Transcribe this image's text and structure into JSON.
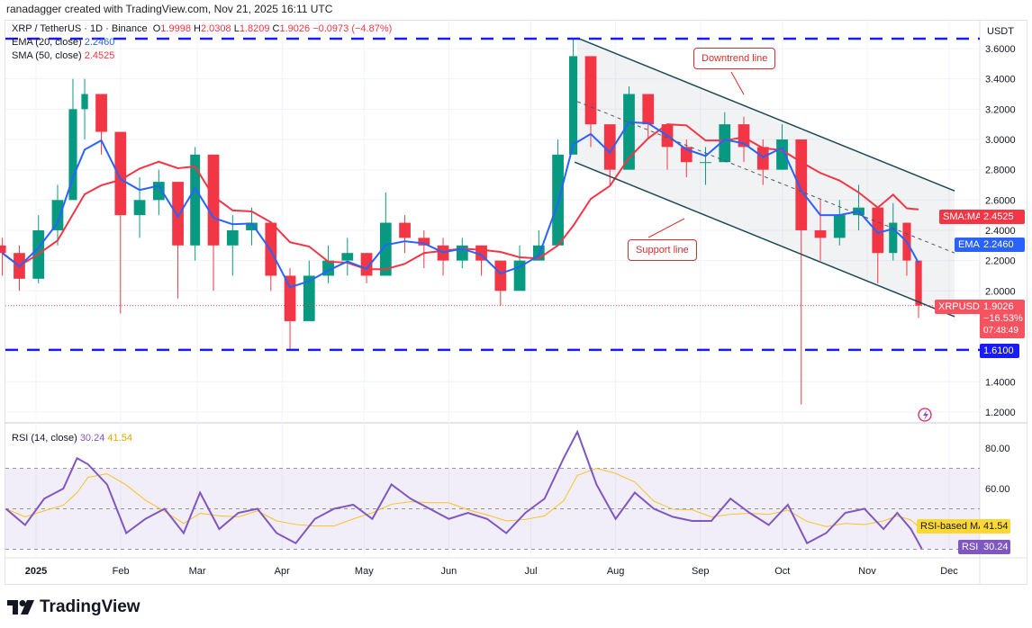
{
  "credit": "ranadagger created with TradingView.com, Nov 21, 2025 16:11 UTC",
  "legend": {
    "symbol": "XRP / TetherUS · 1D · Binance",
    "o_label": "O",
    "o": "1.9998",
    "h_label": "H",
    "h": "2.0308",
    "l_label": "L",
    "l": "1.8209",
    "c_label": "C",
    "c": "1.9026",
    "change": "−0.0973 (−4.87%)",
    "ema_label": "EMA (20, close)",
    "ema_value": "2.2460",
    "sma_label": "SMA (50, close)",
    "sma_value": "2.4525",
    "rsi_label": "RSI (14, close)",
    "rsi_value": "30.24",
    "rsi_ma_value": "41.54"
  },
  "currency": "USDT",
  "brand": "TradingView",
  "tags": {
    "sma": {
      "label": "SMA:MA",
      "value": "2.4525"
    },
    "ema": {
      "label": "EMA",
      "value": "2.2460"
    },
    "price": {
      "label": "XRPUSDT",
      "value": "1.9026",
      "change": "−16.53%",
      "countdown": "07:48:49"
    },
    "level": {
      "value": "1.6100"
    },
    "rsi_ma": {
      "label": "RSI-based MA",
      "value": "41.54"
    },
    "rsi": {
      "label": "RSI",
      "value": "30.24"
    }
  },
  "annotations": {
    "downtrend": "Downtrend line",
    "support": "Support line"
  },
  "colors": {
    "up": "#089981",
    "down": "#f23645",
    "ema": "#2962ff",
    "sma": "#f23645",
    "rsi": "#7e57c2",
    "rsi_ma": "#f7c325",
    "level": "#1a1aff",
    "channel": "#1e4a54"
  },
  "chart_data": {
    "type": "candlestick",
    "price_ticks": [
      "3.6000",
      "3.4000",
      "3.2000",
      "3.0000",
      "2.8000",
      "2.6000",
      "2.4000",
      "2.2000",
      "2.0000",
      "1.4000",
      "1.2000"
    ],
    "ylim": [
      1.13,
      3.78
    ],
    "time_ticks": [
      [
        "2025-01-01",
        "2025"
      ],
      [
        "2025-02-01",
        "Feb"
      ],
      [
        "2025-03-01",
        "Mar"
      ],
      [
        "2025-04-01",
        "Apr"
      ],
      [
        "2025-05-01",
        "May"
      ],
      [
        "2025-06-01",
        "Jun"
      ],
      [
        "2025-07-01",
        "Jul"
      ],
      [
        "2025-08-01",
        "Aug"
      ],
      [
        "2025-09-01",
        "Sep"
      ],
      [
        "2025-10-01",
        "Oct"
      ],
      [
        "2025-11-01",
        "Nov"
      ],
      [
        "2025-12-01",
        "Dec"
      ]
    ],
    "candles_date_close_high_low": [
      [
        "2024-12-21",
        2.25,
        2.35,
        2.1
      ],
      [
        "2024-12-28",
        2.08,
        2.3,
        2.0
      ],
      [
        "2025-01-04",
        2.4,
        2.5,
        2.05
      ],
      [
        "2025-01-11",
        2.6,
        2.7,
        2.3
      ],
      [
        "2025-01-16",
        3.2,
        3.4,
        2.6
      ],
      [
        "2025-01-20",
        3.3,
        3.4,
        3.0
      ],
      [
        "2025-01-27",
        3.05,
        3.3,
        2.9
      ],
      [
        "2025-02-03",
        2.5,
        3.0,
        1.85
      ],
      [
        "2025-02-10",
        2.6,
        2.75,
        2.35
      ],
      [
        "2025-02-17",
        2.72,
        2.8,
        2.5
      ],
      [
        "2025-02-24",
        2.3,
        2.7,
        1.95
      ],
      [
        "2025-03-02",
        2.9,
        2.95,
        2.2
      ],
      [
        "2025-03-09",
        2.3,
        2.8,
        2.0
      ],
      [
        "2025-03-16",
        2.4,
        2.5,
        2.1
      ],
      [
        "2025-03-23",
        2.45,
        2.55,
        2.3
      ],
      [
        "2025-03-30",
        2.1,
        2.45,
        2.0
      ],
      [
        "2025-04-06",
        1.8,
        2.15,
        1.61
      ],
      [
        "2025-04-13",
        2.1,
        2.2,
        1.9
      ],
      [
        "2025-04-20",
        2.2,
        2.3,
        2.05
      ],
      [
        "2025-04-27",
        2.25,
        2.35,
        2.1
      ],
      [
        "2025-05-04",
        2.1,
        2.25,
        2.05
      ],
      [
        "2025-05-11",
        2.45,
        2.65,
        2.2
      ],
      [
        "2025-05-18",
        2.35,
        2.5,
        2.25
      ],
      [
        "2025-05-25",
        2.3,
        2.4,
        2.15
      ],
      [
        "2025-06-01",
        2.2,
        2.35,
        2.1
      ],
      [
        "2025-06-08",
        2.3,
        2.35,
        2.15
      ],
      [
        "2025-06-15",
        2.2,
        2.3,
        2.1
      ],
      [
        "2025-06-22",
        2.0,
        2.2,
        1.9
      ],
      [
        "2025-06-29",
        2.2,
        2.3,
        2.05
      ],
      [
        "2025-07-06",
        2.3,
        2.4,
        2.2
      ],
      [
        "2025-07-13",
        2.9,
        3.0,
        2.3
      ],
      [
        "2025-07-18",
        3.55,
        3.66,
        2.9
      ],
      [
        "2025-07-25",
        3.1,
        3.5,
        2.95
      ],
      [
        "2025-08-01",
        2.8,
        3.1,
        2.7
      ],
      [
        "2025-08-08",
        3.3,
        3.35,
        2.8
      ],
      [
        "2025-08-15",
        3.1,
        3.3,
        3.0
      ],
      [
        "2025-08-22",
        2.95,
        3.1,
        2.8
      ],
      [
        "2025-08-29",
        2.85,
        3.0,
        2.75
      ],
      [
        "2025-09-05",
        2.85,
        2.95,
        2.7
      ],
      [
        "2025-09-12",
        3.1,
        3.18,
        2.85
      ],
      [
        "2025-09-19",
        2.95,
        3.15,
        2.85
      ],
      [
        "2025-09-26",
        2.8,
        3.0,
        2.7
      ],
      [
        "2025-10-03",
        3.0,
        3.1,
        2.8
      ],
      [
        "2025-10-10",
        2.4,
        2.95,
        1.25
      ],
      [
        "2025-10-17",
        2.35,
        2.6,
        2.2
      ],
      [
        "2025-10-24",
        2.5,
        2.6,
        2.3
      ],
      [
        "2025-10-31",
        2.55,
        2.7,
        2.4
      ],
      [
        "2025-11-07",
        2.25,
        2.5,
        2.05
      ],
      [
        "2025-11-12",
        2.45,
        2.58,
        2.2
      ],
      [
        "2025-11-17",
        2.2,
        2.45,
        2.1
      ],
      [
        "2025-11-21",
        1.9026,
        2.0308,
        1.8209
      ]
    ],
    "rsi_ticks": [
      "80.00",
      "60.00"
    ],
    "rsi_band": [
      30,
      70
    ],
    "rsi_points_date_value": [
      [
        "2024-12-21",
        50
      ],
      [
        "2024-12-28",
        42
      ],
      [
        "2025-01-04",
        55
      ],
      [
        "2025-01-11",
        60
      ],
      [
        "2025-01-16",
        75
      ],
      [
        "2025-01-20",
        72
      ],
      [
        "2025-01-27",
        62
      ],
      [
        "2025-02-03",
        38
      ],
      [
        "2025-02-10",
        45
      ],
      [
        "2025-02-17",
        50
      ],
      [
        "2025-02-24",
        38
      ],
      [
        "2025-03-02",
        58
      ],
      [
        "2025-03-09",
        40
      ],
      [
        "2025-03-16",
        48
      ],
      [
        "2025-03-23",
        50
      ],
      [
        "2025-03-30",
        38
      ],
      [
        "2025-04-06",
        33
      ],
      [
        "2025-04-13",
        45
      ],
      [
        "2025-04-20",
        50
      ],
      [
        "2025-04-27",
        52
      ],
      [
        "2025-05-04",
        45
      ],
      [
        "2025-05-11",
        62
      ],
      [
        "2025-05-18",
        55
      ],
      [
        "2025-05-25",
        50
      ],
      [
        "2025-06-01",
        45
      ],
      [
        "2025-06-08",
        48
      ],
      [
        "2025-06-15",
        45
      ],
      [
        "2025-06-22",
        38
      ],
      [
        "2025-06-29",
        48
      ],
      [
        "2025-07-06",
        55
      ],
      [
        "2025-07-13",
        75
      ],
      [
        "2025-07-18",
        88
      ],
      [
        "2025-07-25",
        62
      ],
      [
        "2025-08-01",
        45
      ],
      [
        "2025-08-08",
        58
      ],
      [
        "2025-08-15",
        50
      ],
      [
        "2025-08-22",
        46
      ],
      [
        "2025-08-29",
        44
      ],
      [
        "2025-09-05",
        44
      ],
      [
        "2025-09-12",
        55
      ],
      [
        "2025-09-19",
        48
      ],
      [
        "2025-09-26",
        42
      ],
      [
        "2025-10-03",
        52
      ],
      [
        "2025-10-10",
        33
      ],
      [
        "2025-10-17",
        38
      ],
      [
        "2025-10-24",
        48
      ],
      [
        "2025-10-31",
        50
      ],
      [
        "2025-11-07",
        40
      ],
      [
        "2025-11-12",
        48
      ],
      [
        "2025-11-17",
        40
      ],
      [
        "2025-11-21",
        30.24
      ]
    ],
    "drawings": {
      "horizontal_levels": [
        3.665,
        1.61
      ],
      "downtrend_line": [
        [
          "2025-07-18",
          3.67
        ],
        [
          "2025-12-03",
          2.66
        ]
      ],
      "support_line": [
        [
          "2025-07-17",
          2.85
        ],
        [
          "2025-12-03",
          1.83
        ]
      ],
      "mid_line": [
        [
          "2025-07-18",
          3.25
        ],
        [
          "2025-12-03",
          2.25
        ]
      ]
    }
  }
}
